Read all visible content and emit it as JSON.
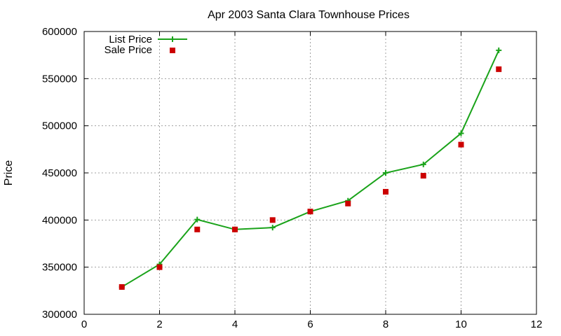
{
  "chart_data": {
    "type": "line",
    "title": "Apr 2003 Santa Clara Townhouse Prices",
    "xlabel": "",
    "ylabel": "Price",
    "xlim": [
      0,
      12
    ],
    "ylim": [
      300000,
      600000
    ],
    "xticks": [
      0,
      2,
      4,
      6,
      8,
      10,
      12
    ],
    "yticks": [
      300000,
      350000,
      400000,
      450000,
      500000,
      550000,
      600000
    ],
    "grid": true,
    "legend_position": "top-left",
    "series": [
      {
        "name": "List Price",
        "style": "line+cross",
        "color": "#1aa31a",
        "x": [
          1,
          2,
          3,
          4,
          5,
          6,
          7,
          8,
          9,
          10,
          11
        ],
        "y": [
          329000,
          353000,
          400500,
          390000,
          392000,
          409000,
          420500,
          450000,
          459000,
          492000,
          580000
        ]
      },
      {
        "name": "Sale Price",
        "style": "square",
        "color": "#cc0000",
        "x": [
          1,
          2,
          3,
          4,
          5,
          6,
          7,
          8,
          9,
          10,
          11
        ],
        "y": [
          329000,
          350000,
          390000,
          390000,
          400000,
          409000,
          417500,
          430000,
          447000,
          480000,
          560000
        ]
      }
    ]
  }
}
